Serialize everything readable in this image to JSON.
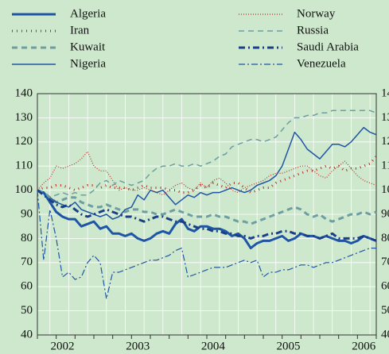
{
  "chart_data": {
    "type": "line",
    "categories": [
      null,
      null,
      null,
      null,
      "2002",
      null,
      null,
      null,
      null,
      null,
      null,
      null,
      null,
      null,
      null,
      null,
      "2003",
      null,
      null,
      null,
      null,
      null,
      null,
      null,
      null,
      null,
      null,
      null,
      "2004",
      null,
      null,
      null,
      null,
      null,
      null,
      null,
      null,
      null,
      null,
      null,
      "2005",
      null,
      null,
      null,
      null,
      null,
      null,
      null,
      null,
      null,
      null,
      null,
      "2006",
      null,
      null
    ],
    "series": [
      {
        "name": "Algeria",
        "color": "#1f55a5",
        "width": 3,
        "dash": "none",
        "values": [
          100,
          99,
          95,
          91,
          89,
          88,
          88,
          85,
          86,
          87,
          84,
          85,
          82,
          82,
          81,
          82,
          80,
          79,
          80,
          82,
          83,
          82,
          86,
          88,
          84,
          83,
          85,
          85,
          84,
          84,
          83,
          81,
          82,
          80,
          76,
          78,
          79,
          79,
          80,
          81,
          79,
          80,
          82,
          81,
          81,
          80,
          81,
          80,
          79,
          79,
          78,
          79,
          81,
          80,
          79
        ]
      },
      {
        "name": "Iran",
        "color": "#b5312b",
        "width": 3,
        "dash": "1 5",
        "values": [
          100,
          101,
          101,
          102,
          102,
          101,
          100,
          101,
          102,
          102,
          101,
          102,
          101,
          101,
          101,
          100,
          101,
          102,
          101,
          101,
          101,
          100,
          100,
          99,
          99,
          100,
          102,
          101,
          103,
          102,
          101,
          103,
          103,
          101,
          99,
          100,
          101,
          101,
          103,
          104,
          105,
          106,
          107,
          108,
          108,
          109,
          110,
          109,
          110,
          108,
          109,
          109,
          110,
          111,
          114
        ]
      },
      {
        "name": "Kuwait",
        "color": "#6c9ea2",
        "width": 3,
        "dash": "7 5",
        "values": [
          100,
          99,
          97,
          95,
          96,
          97,
          97,
          95,
          94,
          93,
          93,
          94,
          93,
          92,
          91,
          92,
          92,
          91,
          91,
          90,
          90,
          91,
          92,
          91,
          90,
          89,
          89,
          89,
          90,
          89,
          89,
          88,
          87,
          87,
          86,
          87,
          88,
          89,
          90,
          91,
          92,
          93,
          92,
          90,
          89,
          90,
          88,
          87,
          88,
          89,
          90,
          90,
          91,
          90,
          91
        ]
      },
      {
        "name": "Nigeria",
        "color": "#1f55a5",
        "width": 1.5,
        "dash": "none",
        "values": [
          100,
          99,
          97,
          95,
          94,
          93,
          95,
          92,
          91,
          90,
          89,
          90,
          88,
          89,
          92,
          93,
          98,
          96,
          100,
          99,
          100,
          97,
          94,
          96,
          98,
          97,
          99,
          98,
          99,
          99,
          100,
          101,
          100,
          99,
          100,
          102,
          103,
          104,
          106,
          110,
          117,
          124,
          121,
          117,
          115,
          113,
          116,
          119,
          119,
          118,
          120,
          123,
          126,
          124,
          123
        ]
      },
      {
        "name": "Norway",
        "color": "#b5312b",
        "width": 1.2,
        "dash": "1 2",
        "values": [
          100,
          103,
          105,
          110,
          109,
          110,
          111,
          113,
          116,
          110,
          108,
          108,
          104,
          100,
          101,
          100,
          100,
          101,
          100,
          99,
          98,
          100,
          102,
          103,
          101,
          100,
          103,
          101,
          104,
          105,
          103,
          100,
          99,
          101,
          102,
          103,
          104,
          106,
          107,
          107,
          108,
          109,
          110,
          110,
          108,
          106,
          105,
          108,
          110,
          112,
          109,
          106,
          104,
          103,
          102
        ]
      },
      {
        "name": "Russia",
        "color": "#6c9ea2",
        "width": 1.5,
        "dash": "7 5",
        "values": [
          100,
          99,
          97,
          98,
          99,
          98,
          99,
          98,
          98,
          100,
          103,
          104,
          102,
          104,
          103,
          102,
          103,
          104,
          107,
          109,
          110,
          110,
          111,
          110,
          110,
          111,
          110,
          111,
          112,
          114,
          115,
          118,
          119,
          120,
          121,
          121,
          120,
          121,
          122,
          125,
          128,
          130,
          130,
          131,
          131,
          132,
          132,
          133,
          133,
          133,
          133,
          133,
          133,
          133,
          132
        ]
      },
      {
        "name": "Saudi Arabia",
        "color": "#1a3f86",
        "width": 3,
        "dash": "8 4 2 4",
        "values": [
          100,
          98,
          96,
          94,
          93,
          94,
          92,
          90,
          89,
          90,
          91,
          92,
          91,
          90,
          89,
          89,
          88,
          87,
          88,
          89,
          89,
          88,
          87,
          87,
          86,
          85,
          84,
          84,
          83,
          83,
          82,
          82,
          81,
          81,
          80,
          81,
          81,
          82,
          82,
          83,
          83,
          82,
          82,
          81,
          81,
          80,
          81,
          82,
          80,
          80,
          80,
          80,
          81,
          80,
          79
        ]
      },
      {
        "name": "Venezuela",
        "color": "#1f55a5",
        "width": 1.2,
        "dash": "8 3 2 3",
        "values": [
          100,
          71,
          92,
          80,
          64,
          66,
          63,
          64,
          70,
          73,
          70,
          55,
          66,
          66,
          67,
          68,
          69,
          70,
          71,
          71,
          72,
          73,
          75,
          76,
          64,
          65,
          66,
          67,
          68,
          68,
          68,
          69,
          70,
          71,
          70,
          71,
          64,
          66,
          66,
          67,
          67,
          68,
          69,
          69,
          68,
          69,
          70,
          70,
          71,
          72,
          73,
          74,
          75,
          76,
          76
        ]
      }
    ],
    "ylim": [
      40,
      140
    ],
    "yticks": [
      40,
      50,
      60,
      70,
      80,
      90,
      100,
      110,
      120,
      130,
      140
    ],
    "grid": true
  }
}
